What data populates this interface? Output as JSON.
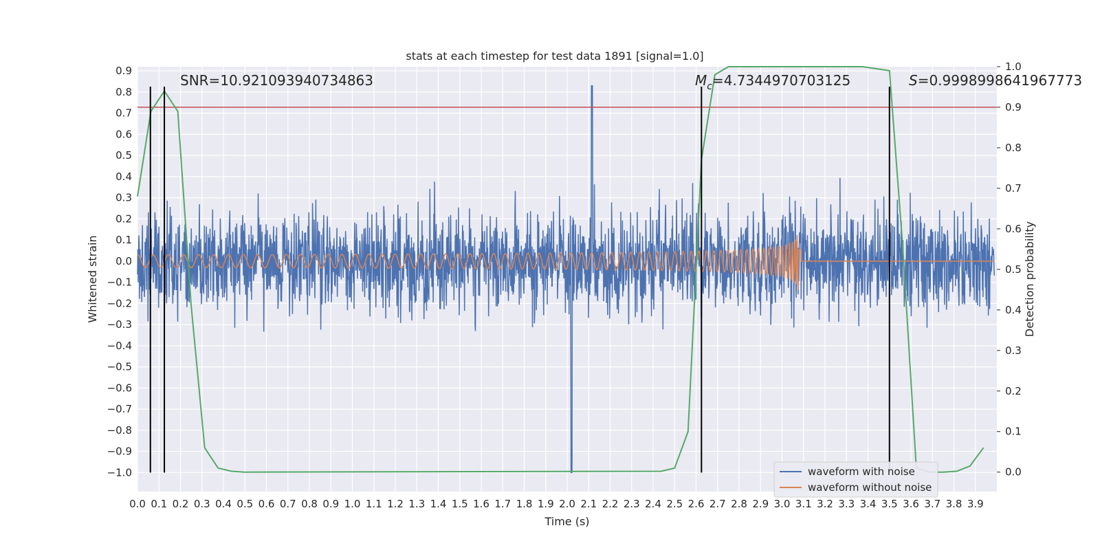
{
  "chart_data": {
    "type": "line",
    "title": "stats at each timestep for test data 1891 [signal=1.0]",
    "xlabel": "Time (s)",
    "ylabel": "Whitened strain",
    "y2label": "Detection probability",
    "xlim": [
      0.0,
      4.0
    ],
    "ylim": [
      -1.09,
      0.92
    ],
    "y2lim": [
      -0.048,
      1.0
    ],
    "x_ticks": [
      "0.0",
      "0.1",
      "0.2",
      "0.3",
      "0.4",
      "0.5",
      "0.6",
      "0.7",
      "0.8",
      "0.9",
      "1.0",
      "1.1",
      "1.2",
      "1.3",
      "1.4",
      "1.5",
      "1.6",
      "1.7",
      "1.8",
      "1.9",
      "2.0",
      "2.1",
      "2.2",
      "2.3",
      "2.4",
      "2.5",
      "2.6",
      "2.7",
      "2.8",
      "2.9",
      "3.0",
      "3.1",
      "3.2",
      "3.3",
      "3.4",
      "3.5",
      "3.6",
      "3.7",
      "3.8",
      "3.9"
    ],
    "y_ticks": [
      "0.9",
      "0.8",
      "0.7",
      "0.6",
      "0.5",
      "0.4",
      "0.3",
      "0.2",
      "0.1",
      "0.0",
      "−0.1",
      "−0.2",
      "−0.3",
      "−0.4",
      "−0.5",
      "−0.6",
      "−0.7",
      "−0.8",
      "−0.9",
      "−1.0"
    ],
    "y2_ticks": [
      "1.0",
      "0.9",
      "0.8",
      "0.7",
      "0.6",
      "0.5",
      "0.4",
      "0.3",
      "0.2",
      "0.1",
      "0.0"
    ],
    "grid": true,
    "legend_position": "bottom-right",
    "annotations": {
      "snr": "SNR=10.921093940734863",
      "mc_symbol": "M",
      "mc_sub": "c",
      "mc_value": "=4.7344970703125",
      "s_symbol": "S",
      "s_value": "=0.9998998641967773"
    },
    "threshold": {
      "axis": "right",
      "value": 0.9,
      "color": "#c44e52"
    },
    "vertical_lines": {
      "x": [
        0.06,
        0.125,
        2.625,
        3.5
      ],
      "color": "#000000"
    },
    "series": [
      {
        "name": "waveform with noise",
        "color": "#4c72b0",
        "axis": "left",
        "description_values": "noise envelope approx ±0.3, peaks to 0.83 near t=2.1 and −1.0 near t=2.02"
      },
      {
        "name": "waveform without noise",
        "color": "#dd8452",
        "axis": "left",
        "chirp": {
          "start": 0.0,
          "merger": 3.08,
          "amp_start": 0.03,
          "amp_peak": 0.26
        }
      },
      {
        "name": "detection probability",
        "color": "#55a868",
        "axis": "right",
        "x": [
          0.0,
          0.0625,
          0.125,
          0.1875,
          0.25,
          0.3125,
          0.375,
          0.4375,
          0.5,
          2.4375,
          2.5,
          2.5625,
          2.625,
          2.6875,
          2.75,
          3.375,
          3.4375,
          3.5,
          3.5625,
          3.625,
          3.6875,
          3.75,
          3.8125,
          3.875,
          3.9375
        ],
        "y": [
          0.68,
          0.89,
          0.94,
          0.89,
          0.41,
          0.06,
          0.01,
          0.002,
          0.0,
          0.002,
          0.01,
          0.1,
          0.77,
          0.98,
          1.0,
          1.0,
          0.995,
          0.99,
          0.55,
          0.01,
          0.0,
          0.0,
          0.002,
          0.015,
          0.06
        ]
      }
    ]
  }
}
